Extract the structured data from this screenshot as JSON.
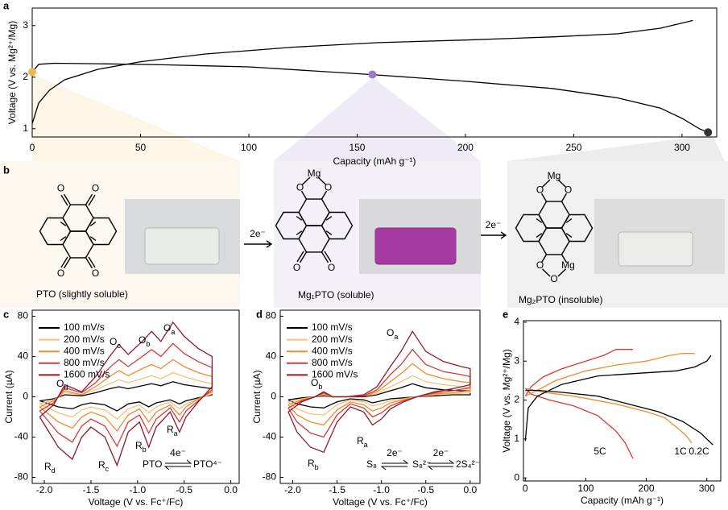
{
  "panel_labels": [
    "a",
    "b",
    "c",
    "d",
    "e"
  ],
  "chart_data": [
    {
      "type": "line",
      "xlabel": "Capacity (mAh g⁻¹)",
      "ylabel": "Voltage (V vs. Mg²⁺/Mg)",
      "xlim": [
        0,
        316
      ],
      "ylim": [
        0.84,
        3.34
      ],
      "xticks": [
        0,
        50,
        100,
        150,
        200,
        250,
        300
      ],
      "yticks": [
        1,
        2,
        3
      ],
      "series": [
        {
          "color": "#000000",
          "x": [
            0,
            3,
            8,
            15,
            30,
            50,
            80,
            120,
            160,
            200,
            240,
            270,
            290,
            300,
            305
          ],
          "values": [
            1.1,
            1.5,
            1.75,
            1.95,
            2.15,
            2.3,
            2.45,
            2.58,
            2.67,
            2.72,
            2.78,
            2.84,
            2.95,
            3.05,
            3.1
          ]
        },
        {
          "color": "#000000",
          "x": [
            0,
            3,
            10,
            30,
            60,
            100,
            157,
            200,
            240,
            270,
            290,
            300,
            308,
            312
          ],
          "values": [
            2.1,
            2.25,
            2.27,
            2.26,
            2.24,
            2.2,
            2.05,
            1.92,
            1.78,
            1.6,
            1.4,
            1.2,
            1.0,
            0.93
          ]
        }
      ],
      "points": {
        "x": [
          0,
          157,
          312
        ],
        "values": [
          2.1,
          2.05,
          0.93
        ],
        "colors": [
          "#f0b84a",
          "#9b7cc8",
          "#333333"
        ]
      }
    },
    {
      "type": "line",
      "xlabel": "Voltage (V vs. Fc⁺/Fc)",
      "ylabel": "Current (µA)",
      "xlim": [
        -2.13,
        0.09
      ],
      "ylim": [
        -86,
        86
      ],
      "xticks": [
        {
          "value": -2,
          "label": "-2.0"
        },
        -1.5,
        {
          "value": -1,
          "label": "-1.0"
        },
        -0.5,
        {
          "value": 0,
          "label": "0.0"
        }
      ],
      "yticks": [
        -80,
        -40,
        0,
        40,
        80
      ],
      "legend": "upper left",
      "x": [
        -2.05,
        -1.9,
        -1.78,
        -1.6,
        -1.45,
        -1.3,
        -1.2,
        -1.1,
        -0.95,
        -0.85,
        -0.75,
        -0.62,
        -0.5,
        -0.35,
        -0.2,
        -0.2,
        -0.35,
        -0.48,
        -0.55,
        -0.65,
        -0.8,
        -0.88,
        -0.98,
        -1.1,
        -1.22,
        -1.35,
        -1.5,
        -1.6,
        -1.7,
        -1.85,
        -2.05
      ],
      "series": [
        {
          "name": "100 mV/s",
          "color": "#000000",
          "values": [
            -4,
            -2,
            2,
            1,
            4,
            8,
            10,
            8,
            11,
            13,
            11,
            15,
            12,
            10,
            8,
            2,
            -1,
            -4,
            -7,
            -3,
            -6,
            -10,
            -5,
            -7,
            -14,
            -8,
            -6,
            -8,
            -12,
            -10,
            -4
          ]
        },
        {
          "name": "200 mV/s",
          "color": "#f5c27a",
          "values": [
            -7,
            -3,
            4,
            2,
            7,
            13,
            17,
            14,
            18,
            21,
            18,
            24,
            20,
            16,
            13,
            3,
            -2,
            -7,
            -12,
            -5,
            -10,
            -16,
            -8,
            -12,
            -22,
            -13,
            -10,
            -13,
            -20,
            -16,
            -7
          ]
        },
        {
          "name": "400 mV/s",
          "color": "#f08c2c",
          "values": [
            -10,
            -4,
            6,
            2,
            10,
            20,
            26,
            21,
            28,
            32,
            28,
            37,
            30,
            24,
            20,
            5,
            -2,
            -10,
            -18,
            -8,
            -15,
            -25,
            -12,
            -18,
            -34,
            -20,
            -15,
            -20,
            -31,
            -25,
            -10
          ]
        },
        {
          "name": "800 mV/s",
          "color": "#d9373b",
          "values": [
            -14,
            -6,
            9,
            4,
            14,
            29,
            37,
            30,
            40,
            47,
            40,
            53,
            43,
            35,
            29,
            7,
            -4,
            -14,
            -25,
            -11,
            -22,
            -36,
            -18,
            -25,
            -49,
            -29,
            -22,
            -29,
            -45,
            -36,
            -14
          ]
        },
        {
          "name": "1600 mV/s",
          "color": "#8b1a2b",
          "values": [
            -20,
            -8,
            12,
            5,
            20,
            40,
            52,
            42,
            55,
            65,
            55,
            74,
            60,
            48,
            40,
            10,
            -5,
            -20,
            -35,
            -15,
            -30,
            -50,
            -25,
            -35,
            -68,
            -40,
            -30,
            -40,
            -62,
            -50,
            -20
          ]
        }
      ],
      "annotations": [
        {
          "text": "O",
          "sub": "a"
        },
        {
          "text": "O",
          "sub": "b"
        },
        {
          "text": "O",
          "sub": "c"
        },
        {
          "text": "O",
          "sub": "d"
        },
        {
          "text": "R",
          "sub": "a"
        },
        {
          "text": "R",
          "sub": "b"
        },
        {
          "text": "R",
          "sub": "c"
        },
        {
          "text": "R",
          "sub": "d"
        }
      ],
      "reaction": {
        "species": [
          "PTO",
          "PTO⁴⁻"
        ],
        "over": [
          "4e⁻"
        ]
      }
    },
    {
      "type": "line",
      "xlabel": "Voltage (V vs. Fc⁺/Fc)",
      "ylabel": "Current (µA)",
      "xlim": [
        -2.14,
        0.11
      ],
      "ylim": [
        -86,
        86
      ],
      "xticks": [
        {
          "value": -2,
          "label": "-2.0"
        },
        -1.5,
        {
          "value": -1,
          "label": "-1.0"
        },
        -0.5,
        {
          "value": 0,
          "label": "0.0"
        }
      ],
      "yticks": [
        -80,
        -40,
        0,
        40,
        80
      ],
      "legend": "upper left",
      "x": [
        -2.05,
        -1.9,
        -1.75,
        -1.65,
        -1.55,
        -1.4,
        -1.2,
        -1.05,
        -0.9,
        -0.78,
        -0.65,
        -0.5,
        -0.3,
        -0.1,
        0.0,
        0.0,
        -0.2,
        -0.4,
        -0.6,
        -0.75,
        -0.9,
        -1.0,
        -1.1,
        -1.2,
        -1.35,
        -1.5,
        -1.65,
        -1.8,
        -1.95,
        -2.05
      ],
      "series": [
        {
          "name": "100 mV/s",
          "color": "#000000",
          "values": [
            -3,
            -1,
            0,
            1,
            0,
            0,
            0,
            2,
            6,
            9,
            13,
            9,
            7,
            6,
            6,
            2,
            2,
            1,
            0,
            -1,
            -2,
            -4,
            -6,
            -3,
            -2,
            -5,
            -11,
            -10,
            -7,
            -3
          ]
        },
        {
          "name": "200 mV/s",
          "color": "#f5c27a",
          "values": [
            -5,
            -2,
            0,
            2,
            0,
            0,
            1,
            3,
            10,
            15,
            21,
            15,
            12,
            10,
            9,
            4,
            3,
            2,
            0,
            -2,
            -4,
            -7,
            -9,
            -5,
            -3,
            -8,
            -18,
            -17,
            -12,
            -5
          ]
        },
        {
          "name": "400 mV/s",
          "color": "#f08c2c",
          "values": [
            -8,
            -3,
            0,
            3,
            0,
            0,
            1,
            5,
            15,
            23,
            33,
            23,
            18,
            15,
            14,
            6,
            4,
            3,
            0,
            -3,
            -6,
            -11,
            -14,
            -8,
            -5,
            -13,
            -28,
            -25,
            -18,
            -8
          ]
        },
        {
          "name": "800 mV/s",
          "color": "#d9373b",
          "values": [
            -11,
            -4,
            0,
            4,
            0,
            0,
            1,
            7,
            22,
            32,
            47,
            32,
            25,
            22,
            20,
            9,
            6,
            4,
            0,
            -4,
            -9,
            -16,
            -20,
            -11,
            -7,
            -18,
            -40,
            -36,
            -25,
            -11
          ]
        },
        {
          "name": "1600 mV/s",
          "color": "#8b1a2b",
          "values": [
            -15,
            -5,
            0,
            5,
            0,
            0,
            2,
            10,
            30,
            45,
            65,
            45,
            35,
            30,
            28,
            12,
            8,
            5,
            0,
            -5,
            -12,
            -22,
            -28,
            -15,
            -10,
            -25,
            -55,
            -50,
            -35,
            -15
          ]
        }
      ],
      "annotations": [
        {
          "text": "O",
          "sub": "a"
        },
        {
          "text": "O",
          "sub": "b"
        },
        {
          "text": "R",
          "sub": "a"
        },
        {
          "text": "R",
          "sub": "b"
        }
      ],
      "reaction": {
        "species": [
          "S₈",
          "S₈²⁻",
          "2S₄²⁻"
        ],
        "over": [
          "2e⁻",
          "2e⁻"
        ]
      }
    },
    {
      "type": "line",
      "xlabel": "Capacity (mAh g⁻¹)",
      "ylabel": "Voltage (V vs. Mg²⁺/Mg)",
      "xlim": [
        -3,
        323
      ],
      "ylim": [
        -0.08,
        4.04
      ],
      "xticks": [
        0,
        100,
        200,
        300
      ],
      "yticks": [
        0,
        1,
        2,
        3,
        4
      ],
      "series": [
        {
          "name": "5C",
          "color": "#d9373b",
          "x": [
            0,
            10,
            30,
            60,
            100,
            130,
            150,
            178,
            null,
            0,
            10,
            40,
            80,
            120,
            150,
            165,
            178
          ],
          "values": [
            2.1,
            2.35,
            2.6,
            2.8,
            3.0,
            3.15,
            3.3,
            3.3,
            null,
            2.3,
            2.15,
            2.0,
            1.85,
            1.6,
            1.2,
            0.9,
            0.5
          ]
        },
        {
          "name": "1C",
          "color": "#f08c2c",
          "x": [
            0,
            20,
            50,
            100,
            150,
            200,
            240,
            260,
            280,
            null,
            0,
            30,
            80,
            150,
            200,
            230,
            250,
            265,
            275
          ],
          "values": [
            2.1,
            2.25,
            2.5,
            2.75,
            2.9,
            3.0,
            3.15,
            3.2,
            3.2,
            null,
            2.3,
            2.2,
            2.1,
            1.9,
            1.7,
            1.55,
            1.3,
            1.1,
            0.9
          ]
        },
        {
          "name": "0.2C",
          "color": "#000000",
          "x": [
            0,
            5,
            20,
            60,
            120,
            200,
            250,
            280,
            300,
            307,
            null,
            0,
            20,
            60,
            120,
            170,
            220,
            260,
            290,
            310
          ],
          "values": [
            0.95,
            1.8,
            2.1,
            2.4,
            2.62,
            2.7,
            2.75,
            2.85,
            3.0,
            3.15,
            null,
            2.25,
            2.25,
            2.2,
            2.1,
            1.9,
            1.7,
            1.45,
            1.15,
            0.85
          ]
        }
      ]
    }
  ],
  "scheme": {
    "molecules": [
      {
        "atoms": [
          "O",
          "O",
          "O",
          "O"
        ],
        "caption": "PTO (slightly soluble)"
      },
      {
        "atoms": [
          "Mg",
          "O",
          "O",
          "O",
          "O"
        ],
        "caption": "Mg₁PTO (soluble)"
      },
      {
        "atoms": [
          "Mg",
          "O",
          "O",
          "O",
          "O",
          "Mg"
        ],
        "caption": "Mg₂PTO (insoluble)"
      }
    ],
    "arrows": [
      "2e⁻",
      "2e⁻"
    ]
  }
}
